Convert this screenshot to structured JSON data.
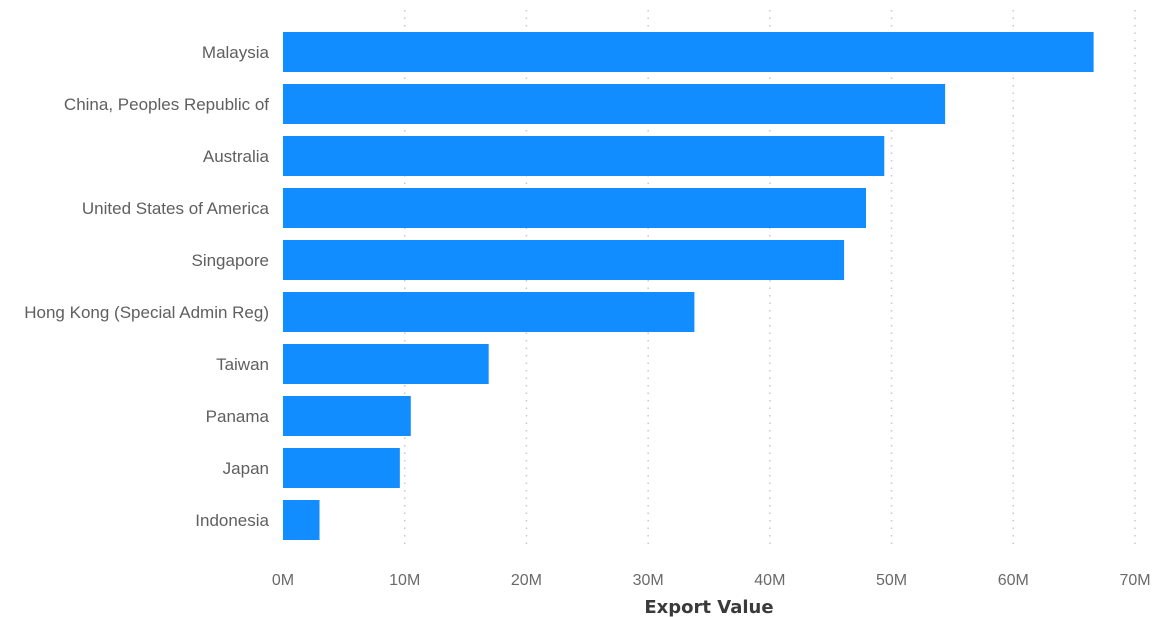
{
  "chart_data": {
    "type": "bar",
    "orientation": "horizontal",
    "categories": [
      "Malaysia",
      "China, Peoples Republic of",
      "Australia",
      "United States of America",
      "Singapore",
      "Hong Kong (Special Admin Reg)",
      "Taiwan",
      "Panama",
      "Japan",
      "Indonesia"
    ],
    "values": [
      66.6,
      54.4,
      49.4,
      47.9,
      46.1,
      33.8,
      16.9,
      10.5,
      9.6,
      3.0
    ],
    "value_unit": "M",
    "xlim": [
      0,
      70
    ],
    "x_ticks": [
      0,
      10,
      20,
      30,
      40,
      50,
      60,
      70
    ],
    "x_tick_labels": [
      "0M",
      "10M",
      "20M",
      "30M",
      "40M",
      "50M",
      "60M",
      "70M"
    ],
    "xlabel": "Export Value",
    "ylabel": "",
    "title": "",
    "grid": "vertical dotted",
    "legend": "none",
    "colors": {
      "bar": "#118dff",
      "gridline": "#c8c8c8",
      "category_text": "#5f5f5f",
      "tick_text": "#6a6a6a",
      "axis_title_text": "#3a3a3a"
    }
  }
}
